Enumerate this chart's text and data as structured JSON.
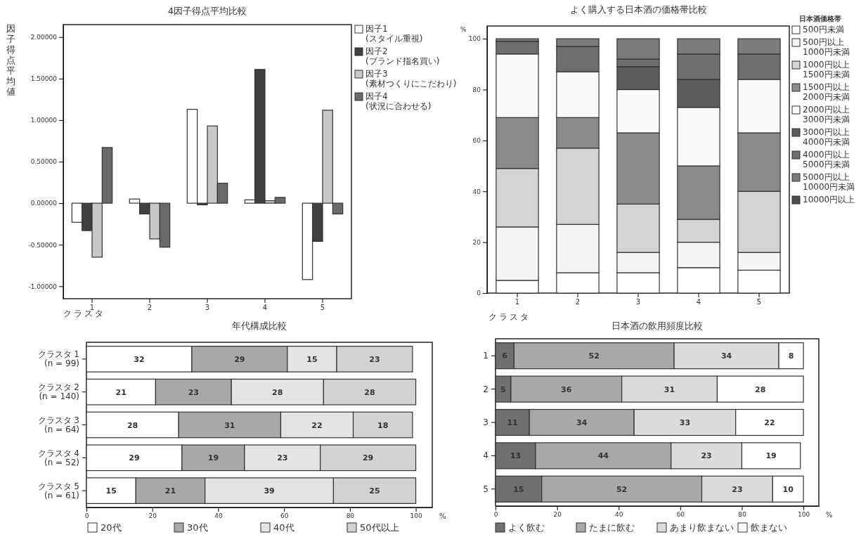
{
  "chart_data": [
    {
      "type": "bar",
      "title": "4因子得点平均比較",
      "xlabel": "クラスタ",
      "ylabel": "因子得点平均値",
      "categories": [
        "1",
        "2",
        "3",
        "4",
        "5"
      ],
      "ylim": [
        -1.15,
        2.15
      ],
      "yticks": [
        {
          "value": -1,
          "label": "-1.00000"
        },
        {
          "value": -0.5,
          "label": "-0.50000"
        },
        {
          "value": 0,
          "label": "0.00000"
        },
        {
          "value": 0.5,
          "label": "0.50000"
        },
        {
          "value": 1,
          "label": "1.00000"
        },
        {
          "value": 1.5,
          "label": "1.50000"
        },
        {
          "value": 2,
          "label": "2.00000"
        }
      ],
      "legend": "right",
      "series": [
        {
          "name": "因子1\n(スタイル重視)",
          "color": "#ffffff",
          "values": [
            -0.23,
            0.05,
            1.13,
            0.04,
            -0.92
          ]
        },
        {
          "name": "因子2\n(ブランド指名買い)",
          "color": "#404040",
          "values": [
            -0.33,
            -0.13,
            -0.02,
            1.61,
            -0.46
          ]
        },
        {
          "name": "因子3\n(素材つくりにこだわり)",
          "color": "#c8c8c8",
          "values": [
            -0.65,
            -0.43,
            0.93,
            0.03,
            1.12
          ]
        },
        {
          "name": "因子4\n(状況に合わせる)",
          "color": "#6a6a6a",
          "values": [
            0.67,
            -0.53,
            0.24,
            0.07,
            -0.13
          ]
        }
      ]
    },
    {
      "type": "bar",
      "stacked": true,
      "title": "よく購入する日本酒の価格帯比較",
      "xlabel": "クラスタ",
      "ylabel": "%",
      "legend_title": "日本酒価格帯",
      "categories": [
        "1",
        "2",
        "3",
        "4",
        "5"
      ],
      "ylim": [
        0,
        105
      ],
      "yticks": [
        0,
        20,
        40,
        60,
        80,
        100
      ],
      "legend": "right",
      "series": [
        {
          "name": "500円未満",
          "color": "#ffffff",
          "values": [
            5,
            8,
            8,
            10,
            9
          ]
        },
        {
          "name": "500円以上\n1000円未満",
          "color": "#f4f4f4",
          "values": [
            21,
            19,
            8,
            10,
            7
          ]
        },
        {
          "name": "1000円以上\n1500円未満",
          "color": "#d4d4d4",
          "values": [
            23,
            30,
            19,
            9,
            24
          ]
        },
        {
          "name": "1500円以上\n2000円未満",
          "color": "#8a8a8a",
          "values": [
            20,
            12,
            28,
            21,
            23
          ]
        },
        {
          "name": "2000円以上\n3000円未満",
          "color": "#fafafa",
          "values": [
            25,
            18,
            17,
            23,
            21
          ]
        },
        {
          "name": "3000円以上\n4000円未満",
          "color": "#5c5c5c",
          "values": [
            0,
            0,
            9,
            11,
            0
          ]
        },
        {
          "name": "4000円以上\n5000円未満",
          "color": "#6e6e6e",
          "values": [
            5,
            10,
            3,
            10,
            10
          ]
        },
        {
          "name": "5000円以上\n10000円未満",
          "color": "#7c7c7c",
          "values": [
            1,
            3,
            8,
            6,
            6
          ]
        },
        {
          "name": "10000円以上",
          "color": "#4a4a4a",
          "values": [
            0,
            0,
            0,
            0,
            0
          ]
        }
      ]
    },
    {
      "type": "bar",
      "stacked": true,
      "orientation": "horizontal",
      "title": "年代構成比較",
      "xlabel": "%",
      "categories": [
        "クラスタ 1\n(n = 99)",
        "クラスタ 2\n(n = 140)",
        "クラスタ 3\n(n = 64)",
        "クラスタ 4\n(n = 52)",
        "クラスタ 5\n(n = 61)"
      ],
      "xlim": [
        0,
        105
      ],
      "xticks": [
        0,
        20,
        40,
        60,
        80,
        100
      ],
      "data_labels": true,
      "legend": "bottom",
      "series": [
        {
          "name": "20代",
          "color": "#ffffff",
          "values": [
            32,
            21,
            28,
            29,
            15
          ]
        },
        {
          "name": "30代",
          "color": "#a8a8a8",
          "values": [
            29,
            23,
            31,
            19,
            21
          ]
        },
        {
          "name": "40代",
          "color": "#e4e4e4",
          "values": [
            15,
            28,
            22,
            23,
            39
          ]
        },
        {
          "name": "50代以上",
          "color": "#d2d2d2",
          "values": [
            23,
            28,
            18,
            29,
            25
          ]
        }
      ]
    },
    {
      "type": "bar",
      "stacked": true,
      "orientation": "horizontal",
      "title": "日本酒の飲用頻度比較",
      "xlabel": "%",
      "categories": [
        "1",
        "2",
        "3",
        "4",
        "5"
      ],
      "xlim": [
        0,
        105
      ],
      "xticks": [
        0,
        20,
        40,
        60,
        80,
        100
      ],
      "data_labels": true,
      "legend": "bottom",
      "series": [
        {
          "name": "よく飲む",
          "color": "#707070",
          "values": [
            6,
            5,
            11,
            13,
            15
          ]
        },
        {
          "name": "たまに飲む",
          "color": "#a8a8a8",
          "values": [
            52,
            36,
            34,
            44,
            52
          ]
        },
        {
          "name": "あまり飲まない",
          "color": "#dcdcdc",
          "values": [
            34,
            31,
            33,
            23,
            23
          ]
        },
        {
          "name": "飲まない",
          "color": "#ffffff",
          "values": [
            8,
            28,
            22,
            19,
            10
          ]
        }
      ]
    }
  ]
}
